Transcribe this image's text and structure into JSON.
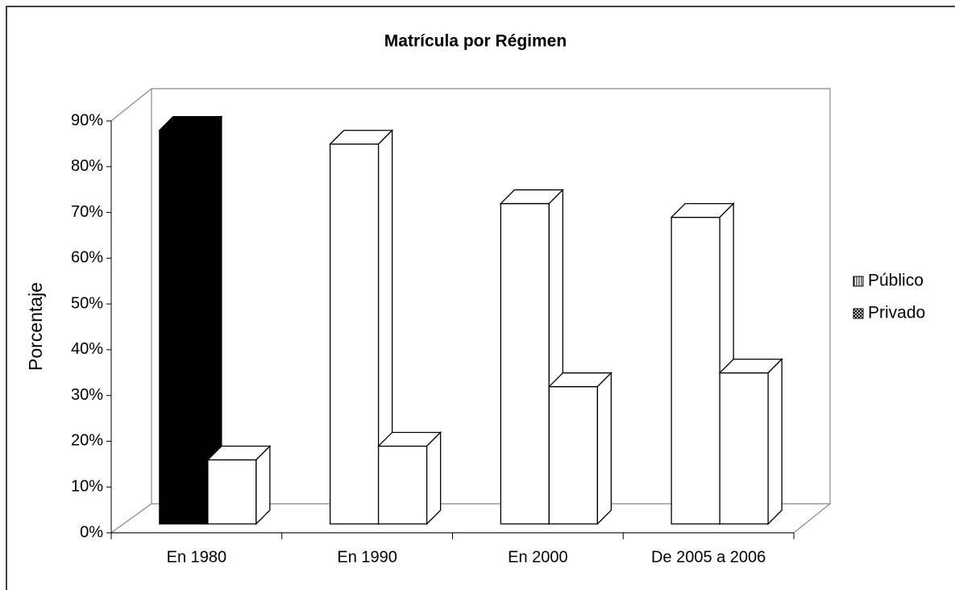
{
  "chart_data": {
    "type": "bar3d",
    "title": "Matrícula por Régimen",
    "y_label": "Porcentaje",
    "categories": [
      "En 1980",
      "En 1990",
      "En 2000",
      "De 2005 a 2006"
    ],
    "series": [
      {
        "name": "Público",
        "color": "#ffffff",
        "point_colors": [
          "#000000",
          "#ffffff",
          "#ffffff",
          "#ffffff"
        ],
        "values": [
          86,
          83,
          70,
          67
        ]
      },
      {
        "name": "Privado",
        "color": "#ffffff",
        "values": [
          14,
          17,
          30,
          33
        ]
      }
    ],
    "ylim": [
      0,
      90
    ],
    "yticks": [
      {
        "value": 0,
        "label": "0%"
      },
      {
        "value": 10,
        "label": "10%"
      },
      {
        "value": 20,
        "label": "20%"
      },
      {
        "value": 30,
        "label": "30%"
      },
      {
        "value": 40,
        "label": "40%"
      },
      {
        "value": 50,
        "label": "50%"
      },
      {
        "value": 60,
        "label": "60%"
      },
      {
        "value": 70,
        "label": "70%"
      },
      {
        "value": 80,
        "label": "80%"
      },
      {
        "value": 90,
        "label": "90%"
      }
    ],
    "grid": false,
    "legend": "right"
  }
}
